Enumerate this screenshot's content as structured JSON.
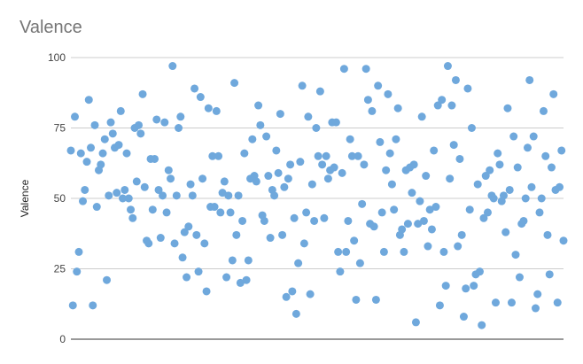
{
  "chart_data": {
    "type": "scatter",
    "title": "Valence",
    "ylabel": "Valence",
    "xlabel": "",
    "ylim": [
      0,
      100
    ],
    "yticks": [
      "0",
      "25",
      "50",
      "75",
      "100"
    ],
    "grid": true,
    "legend": "none",
    "point_color": "#6fa8dc",
    "y": [
      67,
      12,
      79,
      24,
      31,
      66,
      49,
      53,
      63,
      85,
      68,
      12,
      76,
      47,
      60,
      62,
      66,
      71,
      21,
      51,
      77,
      73,
      68,
      52,
      69,
      81,
      50,
      53,
      66,
      50,
      46,
      43,
      75,
      56,
      76,
      73,
      87,
      54,
      35,
      34,
      64,
      46,
      64,
      78,
      53,
      36,
      51,
      77,
      45,
      60,
      57,
      97,
      34,
      51,
      75,
      79,
      29,
      38,
      22,
      40,
      55,
      51,
      89,
      37,
      24,
      86,
      57,
      34,
      17,
      82,
      47,
      65,
      47,
      81,
      65,
      45,
      52,
      56,
      22,
      51,
      45,
      28,
      91,
      37,
      51,
      20,
      42,
      66,
      21,
      28,
      57,
      71,
      58,
      56,
      83,
      76,
      44,
      42,
      72,
      58,
      36,
      53,
      51,
      67,
      59,
      80,
      37,
      54,
      15,
      57,
      62,
      17,
      43,
      9,
      27,
      63,
      90,
      34,
      45,
      79,
      16,
      55,
      42,
      75,
      65,
      88,
      62,
      43,
      65,
      57,
      60,
      77,
      61,
      77,
      31,
      24,
      59,
      96,
      31,
      42,
      71,
      65,
      35,
      14,
      65,
      27,
      48,
      62,
      96,
      85,
      41,
      81,
      40,
      14,
      90,
      70,
      45,
      31,
      60,
      87,
      66,
      55,
      46,
      71,
      82,
      37,
      39,
      31,
      60,
      41,
      61,
      52,
      62,
      6,
      41,
      49,
      79,
      42,
      58,
      33,
      46,
      39,
      67,
      47,
      83,
      12,
      85,
      31,
      19,
      97,
      57,
      83,
      69,
      92,
      33,
      64,
      37,
      8,
      18,
      89,
      46,
      75,
      19,
      23,
      55,
      24,
      5,
      43,
      58,
      45,
      60,
      51,
      50,
      13,
      66,
      62,
      49,
      51,
      38,
      82,
      53,
      13,
      72,
      30,
      61,
      22,
      41,
      42,
      50,
      68,
      92,
      54,
      72,
      11,
      16,
      45,
      50,
      81,
      65,
      37,
      23,
      61,
      87,
      53,
      13,
      54,
      67,
      35
    ]
  }
}
